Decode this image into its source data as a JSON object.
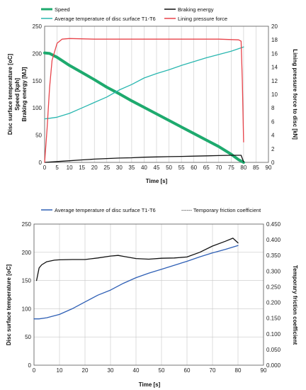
{
  "chart_data": [
    {
      "type": "line",
      "x_label": "Time [s]",
      "x_ticks": [
        0,
        5,
        10,
        15,
        20,
        25,
        30,
        35,
        40,
        45,
        50,
        55,
        60,
        65,
        70,
        75,
        80,
        85,
        90
      ],
      "xlim": [
        0,
        90
      ],
      "y_left_label_lines": [
        "Disc surface temperature [oC]",
        "Speed [kph]",
        "Braking energy [MJ]"
      ],
      "y_left_ticks": [
        0,
        50,
        100,
        150,
        200,
        250
      ],
      "y_left_lim": [
        0,
        250
      ],
      "y_right_label": "Lining pressure force to disc [kN]",
      "y_right_ticks": [
        0,
        2,
        4,
        6,
        8,
        10,
        12,
        14,
        16,
        18,
        20
      ],
      "y_right_lim": [
        0,
        20
      ],
      "grid": "vertical",
      "legend_position": "top",
      "series": [
        {
          "name": "Speed",
          "axis": "left",
          "color": "#1eaa6e",
          "x": [
            0,
            2,
            5,
            10,
            15,
            20,
            25,
            30,
            35,
            40,
            45,
            50,
            55,
            60,
            65,
            70,
            75,
            78,
            80
          ],
          "y": [
            201,
            200,
            193,
            178,
            165,
            152,
            138,
            126,
            113,
            101,
            89,
            77,
            65,
            53,
            41,
            29,
            15,
            5,
            0
          ]
        },
        {
          "name": "Braking energy",
          "axis": "left",
          "color": "#111111",
          "x": [
            0,
            5,
            10,
            15,
            20,
            25,
            30,
            35,
            40,
            45,
            50,
            55,
            60,
            65,
            70,
            75,
            79,
            80
          ],
          "y": [
            0,
            1.5,
            3,
            4.5,
            6,
            7,
            8,
            8.5,
            9.5,
            10,
            10.5,
            11,
            11.5,
            12,
            12.5,
            13,
            13,
            1
          ]
        },
        {
          "name": "Average temperature of disc surface  T1-T6",
          "axis": "left",
          "color": "#2ab7b0",
          "x": [
            0,
            2,
            5,
            10,
            15,
            20,
            25,
            30,
            35,
            40,
            45,
            50,
            55,
            60,
            65,
            70,
            75,
            80
          ],
          "y": [
            80,
            81,
            83,
            90,
            100,
            110,
            120,
            133,
            143,
            155,
            163,
            170,
            178,
            185,
            192,
            198,
            204,
            212
          ]
        },
        {
          "name": "Lining pressure force",
          "axis": "right",
          "color": "#e8434a",
          "x": [
            0,
            1,
            2,
            3,
            5,
            7,
            10,
            20,
            40,
            60,
            70,
            78,
            79,
            79.5,
            80
          ],
          "y": [
            0,
            5,
            11,
            15,
            17.5,
            18.1,
            18.2,
            18.1,
            18.1,
            18.1,
            18.1,
            18.0,
            17.8,
            12,
            3
          ]
        }
      ]
    },
    {
      "type": "line",
      "x_label": "Time [s]",
      "x_ticks": [
        0,
        10,
        20,
        30,
        40,
        50,
        60,
        70,
        80,
        90
      ],
      "xlim": [
        0,
        90
      ],
      "y_left_label": "Disc surface temperature [oC]",
      "y_left_ticks": [
        0,
        50,
        100,
        150,
        200,
        250
      ],
      "y_left_lim": [
        0,
        250
      ],
      "y_right_label": "Temporary friction coefficient",
      "y_right_ticks": [
        "0.000",
        "0.050",
        "0.100",
        "0.150",
        "0.200",
        "0.250",
        "0.300",
        "0.350",
        "0.400",
        "0.450"
      ],
      "y_right_lim": [
        0,
        0.45
      ],
      "grid": "both",
      "legend_position": "top",
      "series": [
        {
          "name": "Average temperature of disc surface T1-T6",
          "axis": "left",
          "color": "#2e5fb5",
          "x": [
            0,
            2,
            5,
            10,
            15,
            20,
            25,
            30,
            35,
            40,
            45,
            50,
            55,
            60,
            65,
            70,
            75,
            80
          ],
          "y": [
            82,
            82,
            84,
            90,
            100,
            112,
            124,
            133,
            145,
            155,
            163,
            170,
            177,
            184,
            192,
            199,
            205,
            212
          ]
        },
        {
          "name": "------ Temporary friction coefficient",
          "axis": "right",
          "color": "#111111",
          "x": [
            1,
            2,
            3,
            5,
            8,
            10,
            15,
            20,
            25,
            30,
            33,
            35,
            40,
            45,
            50,
            55,
            60,
            65,
            70,
            75,
            78,
            80
          ],
          "y": [
            0.27,
            0.31,
            0.32,
            0.33,
            0.335,
            0.336,
            0.337,
            0.337,
            0.342,
            0.348,
            0.35,
            0.347,
            0.34,
            0.338,
            0.341,
            0.342,
            0.345,
            0.36,
            0.38,
            0.395,
            0.405,
            0.39
          ]
        }
      ]
    }
  ]
}
